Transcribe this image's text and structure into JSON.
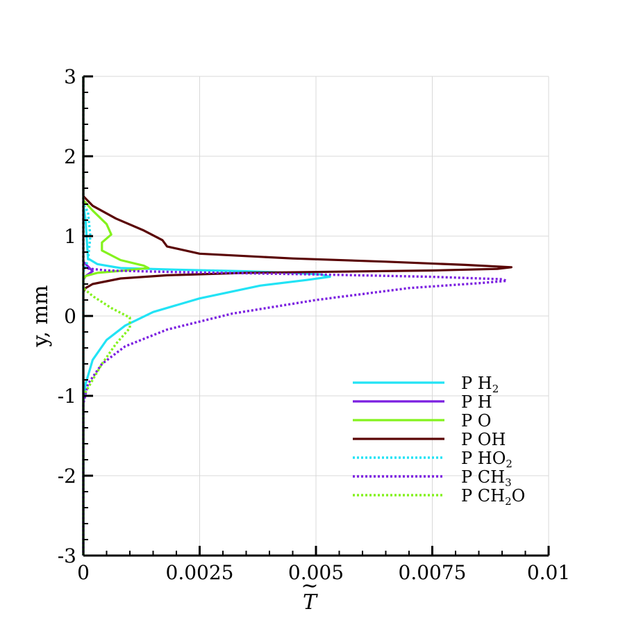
{
  "chart_data": {
    "type": "line",
    "xlabel": "T",
    "xlabel_accent": "~",
    "ylabel": "y, mm",
    "xlim": [
      0,
      0.01
    ],
    "ylim": [
      -3,
      3
    ],
    "xticks": [
      0,
      0.0025,
      0.005,
      0.0075,
      0.01
    ],
    "xtick_labels": [
      "0",
      "0.0025",
      "0.005",
      "0.0075",
      "0.01"
    ],
    "yticks": [
      -3,
      -2,
      -1,
      0,
      1,
      2,
      3
    ],
    "ytick_labels": [
      "-3",
      "-2",
      "-1",
      "0",
      "1",
      "2",
      "3"
    ],
    "grid": true,
    "legend_position": "bottom-right",
    "series": [
      {
        "name": "P H",
        "name_sub": "2",
        "color": "#22e3f5",
        "dash": "solid",
        "points": [
          [
            0,
            3
          ],
          [
            0,
            1.4
          ],
          [
            5e-05,
            1.2
          ],
          [
            8e-05,
            0.9
          ],
          [
            0.0001,
            0.72
          ],
          [
            0.0003,
            0.65
          ],
          [
            0.0008,
            0.6
          ],
          [
            0.002,
            0.58
          ],
          [
            0.0035,
            0.56
          ],
          [
            0.0045,
            0.54
          ],
          [
            0.0051,
            0.52
          ],
          [
            0.0053,
            0.49
          ],
          [
            0.0048,
            0.45
          ],
          [
            0.0038,
            0.38
          ],
          [
            0.0025,
            0.22
          ],
          [
            0.0015,
            0.05
          ],
          [
            0.0009,
            -0.12
          ],
          [
            0.0005,
            -0.3
          ],
          [
            0.0002,
            -0.55
          ],
          [
            5e-05,
            -0.85
          ],
          [
            0,
            -1.1
          ],
          [
            0,
            -3
          ]
        ]
      },
      {
        "name": "P H",
        "name_sub": "",
        "color": "#7b1fe0",
        "dash": "solid",
        "points": [
          [
            0,
            3
          ],
          [
            0,
            0.68
          ],
          [
            0.0001,
            0.62
          ],
          [
            0.0002,
            0.56
          ],
          [
            5e-05,
            0.5
          ],
          [
            0,
            0.45
          ],
          [
            0,
            -3
          ]
        ]
      },
      {
        "name": "P O",
        "name_sub": "",
        "color": "#84f21e",
        "dash": "solid",
        "points": [
          [
            0,
            3
          ],
          [
            0,
            1.45
          ],
          [
            0.0002,
            1.32
          ],
          [
            0.0005,
            1.15
          ],
          [
            0.0006,
            1.02
          ],
          [
            0.0004,
            0.92
          ],
          [
            0.0004,
            0.82
          ],
          [
            0.0008,
            0.7
          ],
          [
            0.0013,
            0.63
          ],
          [
            0.0014,
            0.6
          ],
          [
            0.0009,
            0.57
          ],
          [
            0.0003,
            0.54
          ],
          [
            5e-05,
            0.5
          ],
          [
            0,
            0.46
          ],
          [
            0,
            -3
          ]
        ]
      },
      {
        "name": "P OH",
        "name_sub": "",
        "color": "#5a0505",
        "dash": "solid",
        "points": [
          [
            0,
            3
          ],
          [
            0,
            1.5
          ],
          [
            0.0002,
            1.38
          ],
          [
            0.0007,
            1.22
          ],
          [
            0.0013,
            1.07
          ],
          [
            0.0017,
            0.95
          ],
          [
            0.0018,
            0.87
          ],
          [
            0.0025,
            0.78
          ],
          [
            0.0045,
            0.72
          ],
          [
            0.0065,
            0.68
          ],
          [
            0.0082,
            0.64
          ],
          [
            0.0092,
            0.61
          ],
          [
            0.0089,
            0.59
          ],
          [
            0.0075,
            0.57
          ],
          [
            0.0055,
            0.555
          ],
          [
            0.0035,
            0.54
          ],
          [
            0.0018,
            0.51
          ],
          [
            0.0008,
            0.47
          ],
          [
            0.0002,
            0.4
          ],
          [
            5e-05,
            0.35
          ],
          [
            0,
            0.3
          ],
          [
            0,
            -3
          ]
        ]
      },
      {
        "name": "P HO",
        "name_sub": "2",
        "color": "#22e3f5",
        "dash": "dotted",
        "points": [
          [
            0,
            3
          ],
          [
            0,
            1.4
          ],
          [
            0.0001,
            1.3
          ],
          [
            0.00015,
            1.0
          ],
          [
            0.0001,
            0.7
          ],
          [
            0,
            0.55
          ],
          [
            0,
            -3
          ]
        ]
      },
      {
        "name": "P CH",
        "name_sub": "3",
        "color": "#7b1fe0",
        "dash": "dotted",
        "points": [
          [
            0,
            3
          ],
          [
            0,
            0.6
          ],
          [
            0.0005,
            0.57
          ],
          [
            0.002,
            0.55
          ],
          [
            0.005,
            0.52
          ],
          [
            0.0075,
            0.49
          ],
          [
            0.009,
            0.46
          ],
          [
            0.0091,
            0.44
          ],
          [
            0.0085,
            0.41
          ],
          [
            0.007,
            0.35
          ],
          [
            0.005,
            0.2
          ],
          [
            0.0032,
            0.03
          ],
          [
            0.0018,
            -0.17
          ],
          [
            0.0009,
            -0.38
          ],
          [
            0.0004,
            -0.6
          ],
          [
            0.0001,
            -0.85
          ],
          [
            0,
            -1.1
          ],
          [
            0,
            -3
          ]
        ]
      },
      {
        "name": "P CH",
        "name_sub": "2",
        "name_tail": "O",
        "color": "#84f21e",
        "dash": "dotted",
        "points": [
          [
            0,
            3
          ],
          [
            0,
            0.35
          ],
          [
            0.0002,
            0.25
          ],
          [
            0.0006,
            0.1
          ],
          [
            0.001,
            -0.02
          ],
          [
            0.001,
            -0.15
          ],
          [
            0.0007,
            -0.35
          ],
          [
            0.0004,
            -0.6
          ],
          [
            0.00015,
            -0.85
          ],
          [
            0,
            -1.0
          ],
          [
            0,
            -3
          ]
        ]
      }
    ]
  }
}
